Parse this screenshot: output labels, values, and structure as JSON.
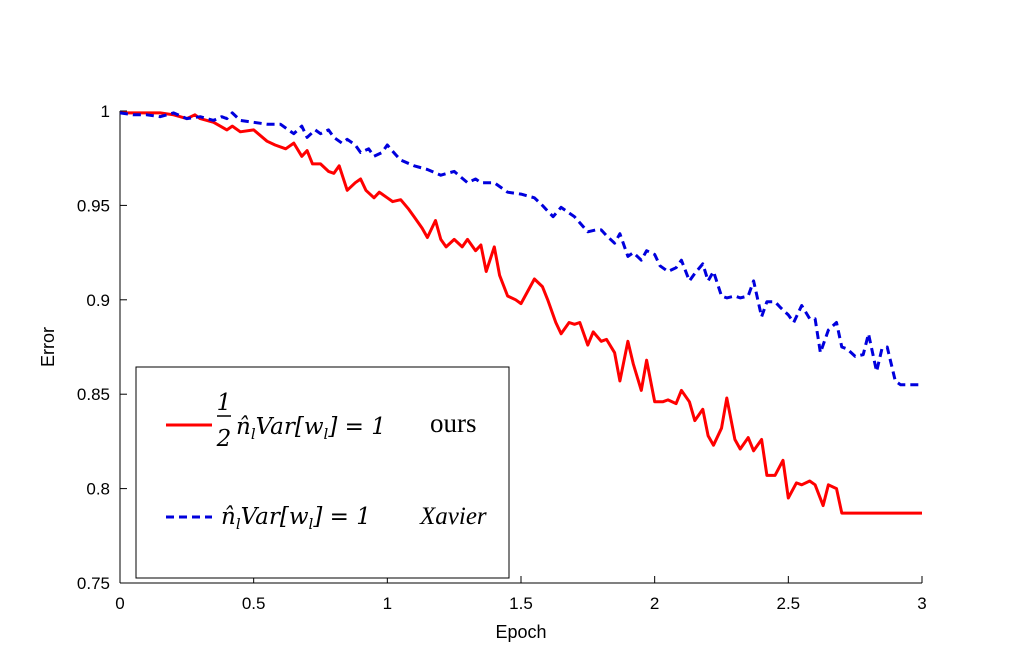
{
  "chart_data": {
    "type": "line",
    "xlabel": "Epoch",
    "ylabel": "Error",
    "xlim": [
      0,
      3
    ],
    "ylim": [
      0.75,
      1.0
    ],
    "xticks": [
      "0",
      "0.5",
      "1",
      "1.5",
      "2",
      "2.5",
      "3"
    ],
    "yticks": [
      "0.75",
      "0.8",
      "0.85",
      "0.9",
      "0.95",
      "1"
    ],
    "grid": false,
    "legend_position": "bottom-left",
    "series": [
      {
        "name": "ours",
        "formula": "½ n̂ₗVar[wₗ] = 1",
        "color": "#ff0000",
        "style": "solid",
        "x": [
          0,
          0.1,
          0.15,
          0.2,
          0.25,
          0.28,
          0.3,
          0.35,
          0.4,
          0.42,
          0.45,
          0.5,
          0.55,
          0.58,
          0.62,
          0.65,
          0.68,
          0.7,
          0.72,
          0.75,
          0.78,
          0.8,
          0.82,
          0.85,
          0.88,
          0.9,
          0.92,
          0.95,
          0.97,
          1.0,
          1.02,
          1.05,
          1.08,
          1.1,
          1.13,
          1.15,
          1.18,
          1.2,
          1.22,
          1.25,
          1.28,
          1.3,
          1.33,
          1.35,
          1.37,
          1.4,
          1.42,
          1.45,
          1.48,
          1.5,
          1.55,
          1.58,
          1.6,
          1.63,
          1.65,
          1.68,
          1.7,
          1.72,
          1.75,
          1.77,
          1.8,
          1.82,
          1.85,
          1.87,
          1.9,
          1.92,
          1.95,
          1.97,
          2.0,
          2.03,
          2.05,
          2.08,
          2.1,
          2.13,
          2.15,
          2.18,
          2.2,
          2.22,
          2.25,
          2.27,
          2.3,
          2.32,
          2.35,
          2.37,
          2.4,
          2.42,
          2.45,
          2.48,
          2.5,
          2.53,
          2.55,
          2.58,
          2.6,
          2.63,
          2.65,
          2.68,
          2.7,
          2.72,
          2.75,
          2.78,
          2.8,
          2.82,
          2.85,
          2.87,
          2.9,
          2.92,
          2.95,
          2.97,
          3.0
        ],
        "y": [
          0.999,
          0.999,
          0.999,
          0.998,
          0.996,
          0.998,
          0.996,
          0.994,
          0.99,
          0.992,
          0.989,
          0.99,
          0.984,
          0.982,
          0.98,
          0.983,
          0.976,
          0.979,
          0.972,
          0.972,
          0.968,
          0.967,
          0.971,
          0.958,
          0.962,
          0.964,
          0.958,
          0.954,
          0.957,
          0.954,
          0.952,
          0.953,
          0.948,
          0.944,
          0.938,
          0.933,
          0.942,
          0.932,
          0.928,
          0.932,
          0.928,
          0.932,
          0.926,
          0.929,
          0.915,
          0.928,
          0.913,
          0.902,
          0.9,
          0.898,
          0.911,
          0.907,
          0.9,
          0.888,
          0.882,
          0.888,
          0.887,
          0.888,
          0.876,
          0.883,
          0.878,
          0.879,
          0.872,
          0.857,
          0.878,
          0.866,
          0.852,
          0.868,
          0.846,
          0.846,
          0.847,
          0.845,
          0.852,
          0.846,
          0.836,
          0.842,
          0.828,
          0.823,
          0.832,
          0.848,
          0.826,
          0.821,
          0.827,
          0.82,
          0.826,
          0.807,
          0.807,
          0.815,
          0.795,
          0.803,
          0.802,
          0.804,
          0.802,
          0.791,
          0.802,
          0.8,
          0.787,
          0.787,
          0.787,
          0.787,
          0.787,
          0.787,
          0.787,
          0.787,
          0.787,
          0.787,
          0.787,
          0.787,
          0.787
        ]
      },
      {
        "name": "Xavier",
        "formula": "n̂ₗVar[wₗ] = 1",
        "color": "#0000dd",
        "style": "dashed",
        "x": [
          0,
          0.05,
          0.1,
          0.15,
          0.2,
          0.25,
          0.3,
          0.35,
          0.38,
          0.4,
          0.42,
          0.45,
          0.5,
          0.55,
          0.6,
          0.63,
          0.65,
          0.68,
          0.7,
          0.73,
          0.75,
          0.78,
          0.8,
          0.83,
          0.85,
          0.88,
          0.9,
          0.93,
          0.95,
          0.98,
          1.0,
          1.03,
          1.05,
          1.1,
          1.15,
          1.2,
          1.25,
          1.3,
          1.33,
          1.35,
          1.4,
          1.45,
          1.5,
          1.55,
          1.58,
          1.6,
          1.62,
          1.65,
          1.68,
          1.7,
          1.75,
          1.78,
          1.8,
          1.82,
          1.85,
          1.87,
          1.9,
          1.92,
          1.95,
          1.97,
          2.0,
          2.02,
          2.05,
          2.08,
          2.1,
          2.13,
          2.15,
          2.18,
          2.2,
          2.22,
          2.25,
          2.27,
          2.3,
          2.32,
          2.35,
          2.37,
          2.4,
          2.42,
          2.45,
          2.47,
          2.5,
          2.52,
          2.55,
          2.58,
          2.6,
          2.62,
          2.65,
          2.68,
          2.7,
          2.72,
          2.75,
          2.78,
          2.8,
          2.83,
          2.85,
          2.87,
          2.9,
          2.92,
          2.95,
          2.97,
          3.0
        ],
        "y": [
          0.999,
          0.998,
          0.998,
          0.997,
          0.999,
          0.996,
          0.997,
          0.995,
          0.997,
          0.996,
          0.999,
          0.995,
          0.994,
          0.993,
          0.993,
          0.99,
          0.988,
          0.992,
          0.986,
          0.99,
          0.988,
          0.99,
          0.986,
          0.983,
          0.985,
          0.982,
          0.978,
          0.98,
          0.976,
          0.978,
          0.982,
          0.977,
          0.974,
          0.971,
          0.969,
          0.966,
          0.968,
          0.962,
          0.964,
          0.962,
          0.962,
          0.957,
          0.956,
          0.954,
          0.95,
          0.947,
          0.944,
          0.949,
          0.946,
          0.944,
          0.936,
          0.937,
          0.937,
          0.934,
          0.93,
          0.935,
          0.923,
          0.925,
          0.921,
          0.926,
          0.924,
          0.918,
          0.915,
          0.917,
          0.921,
          0.91,
          0.914,
          0.919,
          0.91,
          0.915,
          0.902,
          0.901,
          0.902,
          0.901,
          0.902,
          0.91,
          0.891,
          0.899,
          0.899,
          0.896,
          0.892,
          0.888,
          0.897,
          0.89,
          0.89,
          0.872,
          0.884,
          0.888,
          0.875,
          0.874,
          0.87,
          0.871,
          0.882,
          0.862,
          0.874,
          0.875,
          0.857,
          0.855,
          0.855,
          0.855,
          0.855
        ]
      }
    ]
  }
}
